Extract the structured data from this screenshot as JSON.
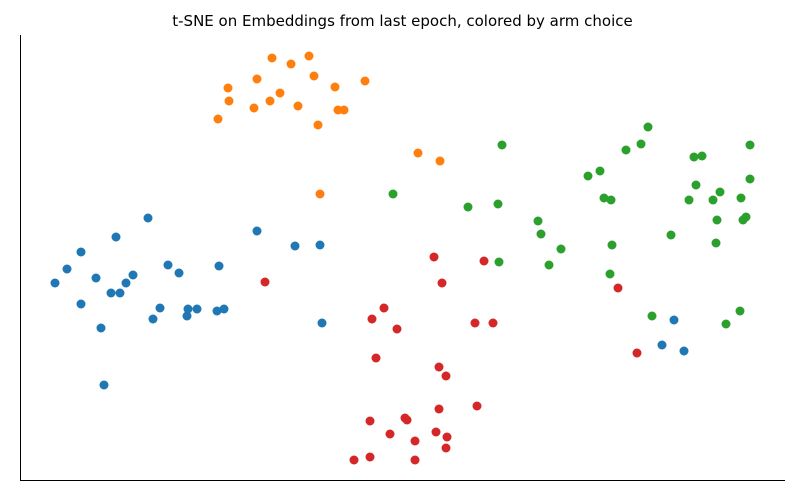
{
  "chart_data": {
    "type": "scatter",
    "title": "t-SNE on Embeddings from last epoch, colored by arm choice",
    "xlabel": "",
    "ylabel": "",
    "xlim": [
      20,
      785
    ],
    "ylim": [
      480,
      35
    ],
    "grid": false,
    "legend": "none",
    "axes": {
      "left_spine": true,
      "bottom_spine": true,
      "ticks": false
    },
    "point_radius": 4.5,
    "series": [
      {
        "color": "#1f77b4",
        "points": [
          [
            55,
            283
          ],
          [
            67,
            269
          ],
          [
            81,
            252
          ],
          [
            81,
            304
          ],
          [
            96,
            278
          ],
          [
            101,
            328
          ],
          [
            104,
            385
          ],
          [
            111,
            293
          ],
          [
            116,
            237
          ],
          [
            120,
            293
          ],
          [
            126,
            283
          ],
          [
            133,
            275
          ],
          [
            148,
            218
          ],
          [
            153,
            319
          ],
          [
            160,
            308
          ],
          [
            168,
            265
          ],
          [
            179,
            273
          ],
          [
            187,
            316
          ],
          [
            188,
            309
          ],
          [
            197,
            309
          ],
          [
            217,
            311
          ],
          [
            219,
            266
          ],
          [
            224,
            309
          ],
          [
            257,
            231
          ],
          [
            295,
            246
          ],
          [
            320,
            245
          ],
          [
            322,
            323
          ],
          [
            662,
            345
          ],
          [
            674,
            320
          ],
          [
            684,
            351
          ]
        ]
      },
      {
        "color": "#ff7f0e",
        "points": [
          [
            218,
            119
          ],
          [
            228,
            88
          ],
          [
            229,
            101
          ],
          [
            254,
            108
          ],
          [
            257,
            79
          ],
          [
            270,
            101
          ],
          [
            272,
            58
          ],
          [
            280,
            93
          ],
          [
            291,
            64
          ],
          [
            298,
            106
          ],
          [
            309,
            56
          ],
          [
            314,
            76
          ],
          [
            318,
            125
          ],
          [
            320,
            194
          ],
          [
            335,
            87
          ],
          [
            338,
            110
          ],
          [
            344,
            110
          ],
          [
            365,
            81
          ],
          [
            418,
            153
          ],
          [
            440,
            161
          ]
        ]
      },
      {
        "color": "#2ca02c",
        "points": [
          [
            393,
            194
          ],
          [
            468,
            207
          ],
          [
            498,
            204
          ],
          [
            499,
            262
          ],
          [
            502,
            145
          ],
          [
            538,
            221
          ],
          [
            541,
            234
          ],
          [
            549,
            265
          ],
          [
            561,
            249
          ],
          [
            588,
            176
          ],
          [
            600,
            171
          ],
          [
            604,
            198
          ],
          [
            610,
            274
          ],
          [
            611,
            200
          ],
          [
            612,
            245
          ],
          [
            626,
            150
          ],
          [
            641,
            144
          ],
          [
            648,
            127
          ],
          [
            652,
            316
          ],
          [
            671,
            235
          ],
          [
            689,
            200
          ],
          [
            694,
            157
          ],
          [
            696,
            185
          ],
          [
            702,
            156
          ],
          [
            713,
            200
          ],
          [
            716,
            243
          ],
          [
            717,
            220
          ],
          [
            720,
            192
          ],
          [
            726,
            324
          ],
          [
            740,
            311
          ],
          [
            741,
            198
          ],
          [
            743,
            220
          ],
          [
            746,
            217
          ],
          [
            750,
            145
          ],
          [
            750,
            179
          ]
        ]
      },
      {
        "color": "#d62728",
        "points": [
          [
            265,
            282
          ],
          [
            354,
            460
          ],
          [
            370,
            421
          ],
          [
            370,
            457
          ],
          [
            372,
            319
          ],
          [
            376,
            358
          ],
          [
            384,
            308
          ],
          [
            390,
            434
          ],
          [
            397,
            329
          ],
          [
            405,
            418
          ],
          [
            407,
            420
          ],
          [
            415,
            441
          ],
          [
            415,
            460
          ],
          [
            434,
            257
          ],
          [
            436,
            432
          ],
          [
            439,
            409
          ],
          [
            439,
            367
          ],
          [
            442,
            283
          ],
          [
            446,
            376
          ],
          [
            446,
            448
          ],
          [
            447,
            437
          ],
          [
            475,
            323
          ],
          [
            477,
            406
          ],
          [
            484,
            261
          ],
          [
            493,
            323
          ],
          [
            618,
            288
          ],
          [
            637,
            353
          ]
        ]
      }
    ]
  }
}
